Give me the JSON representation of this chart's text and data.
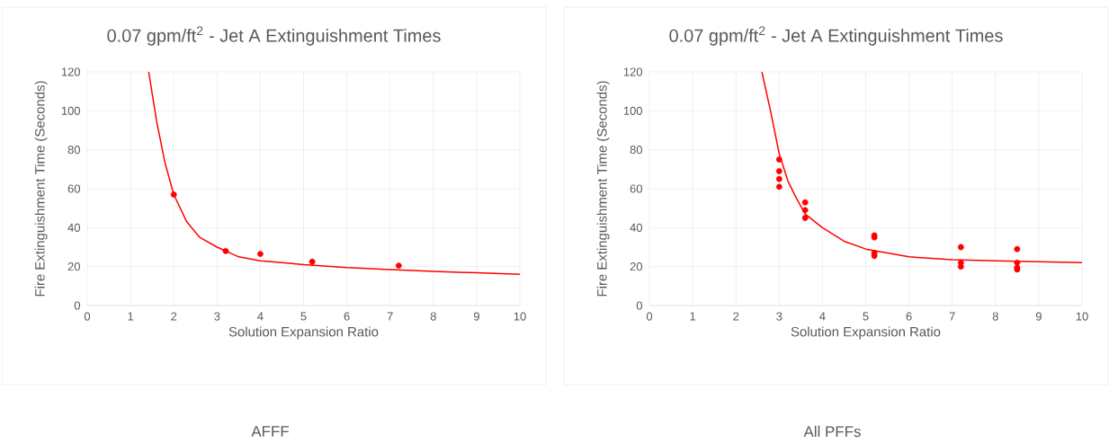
{
  "chart_data": [
    {
      "type": "scatter",
      "title": "0.07 gpm/ft$^{2}$ -  Jet A Extinguishment Times",
      "xlabel": "Solution Expansion Ratio",
      "ylabel": "Fire Extinguishment Time (Seconds)",
      "xlim": [
        0,
        10
      ],
      "ylim": [
        0,
        120
      ],
      "xticks": [
        0,
        1,
        2,
        3,
        4,
        5,
        6,
        7,
        8,
        9,
        10
      ],
      "yticks": [
        0,
        20,
        40,
        60,
        80,
        100,
        120
      ],
      "grid": true,
      "annotations": [
        "AFFF"
      ],
      "series": [
        {
          "type": "line",
          "marker": "none",
          "color": "#ff0000",
          "x": [
            1.42,
            1.6,
            1.8,
            2,
            2.3,
            2.6,
            3,
            3.5,
            4,
            4.5,
            5,
            6,
            7,
            8,
            9,
            10
          ],
          "values": [
            120,
            95,
            73,
            57,
            43,
            35,
            30,
            25,
            23,
            22,
            21,
            19.5,
            18.5,
            17.5,
            16.8,
            16
          ]
        },
        {
          "marker": "circle",
          "color": "#ff0000",
          "x": [
            2,
            3.2,
            4,
            5.2,
            7.2
          ],
          "values": [
            57,
            28,
            26.5,
            22.5,
            20.5
          ]
        }
      ]
    },
    {
      "type": "scatter",
      "title": "0.07 gpm/ft$^{2}$ - Jet A Extinguishment Times",
      "xlabel": "Solution Expansion Ratio",
      "ylabel": "Fire Extinguishment Time (Seconds)",
      "xlim": [
        0,
        10
      ],
      "ylim": [
        0,
        120
      ],
      "xticks": [
        0,
        1,
        2,
        3,
        4,
        5,
        6,
        7,
        8,
        9,
        10
      ],
      "yticks": [
        0,
        20,
        40,
        60,
        80,
        100,
        120
      ],
      "grid": true,
      "annotations": [
        "All PFFs"
      ],
      "series": [
        {
          "type": "line",
          "marker": "none",
          "color": "#ff0000",
          "x": [
            2.6,
            2.8,
            3,
            3.2,
            3.4,
            3.6,
            4,
            4.5,
            5,
            5.5,
            6,
            7,
            8,
            9,
            10
          ],
          "values": [
            120,
            100,
            78,
            64,
            55,
            47,
            40,
            33,
            29,
            27,
            25,
            23.5,
            23,
            22.5,
            22
          ]
        },
        {
          "marker": "circle",
          "color": "#ff0000",
          "x": [
            3,
            3,
            3,
            3,
            3.6,
            3.6,
            3.6,
            5.2,
            5.2,
            5.2,
            5.2,
            7.2,
            7.2,
            7.2,
            8.5,
            8.5,
            8.5,
            8.5
          ],
          "values": [
            75,
            69,
            65,
            61,
            53,
            49,
            45,
            36,
            35,
            27,
            25.5,
            30,
            22,
            20,
            29,
            22,
            19.5,
            18.5
          ]
        }
      ]
    }
  ]
}
